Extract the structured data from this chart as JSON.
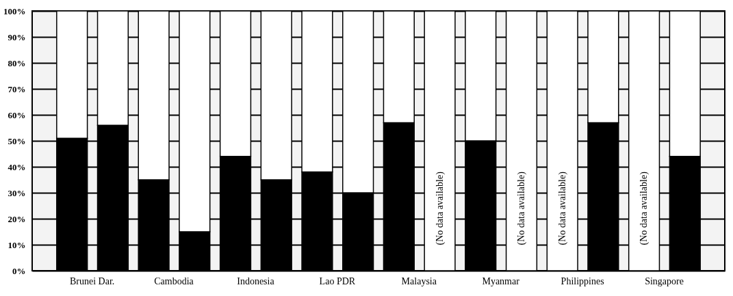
{
  "chart_data": {
    "type": "bar",
    "stacked": true,
    "categories": [
      "Brunei Dar.",
      null,
      "Cambodia",
      null,
      "Indonesia",
      null,
      "Lao PDR",
      null,
      "Malaysia",
      null,
      "Myanmar",
      null,
      "Philippines",
      null,
      "Singapore",
      null
    ],
    "series": [
      {
        "color": "#000000",
        "values": [
          51,
          56,
          35,
          15,
          44,
          35,
          38,
          30,
          57,
          null,
          50,
          null,
          null,
          57,
          null,
          44
        ]
      },
      {
        "color": "#ffffff",
        "values": [
          49,
          44,
          65,
          85,
          56,
          65,
          62,
          70,
          43,
          100,
          50,
          100,
          100,
          43,
          100,
          56
        ]
      }
    ],
    "ylim": [
      0,
      100
    ],
    "yticks": [
      {
        "value": 0,
        "label": "0%"
      },
      {
        "value": 10,
        "label": "10%"
      },
      {
        "value": 20,
        "label": "20%"
      },
      {
        "value": 30,
        "label": "30%"
      },
      {
        "value": 40,
        "label": "40%"
      },
      {
        "value": 50,
        "label": "50%"
      },
      {
        "value": 60,
        "label": "60%"
      },
      {
        "value": 70,
        "label": "70%"
      },
      {
        "value": 80,
        "label": "80%"
      },
      {
        "value": 90,
        "label": "90%"
      },
      {
        "value": 100,
        "label": "100%"
      }
    ],
    "grid": "y",
    "legend": false,
    "annotations": [
      "(No data available)",
      "(No data available)",
      "(No data available)",
      "(No data available)"
    ]
  }
}
